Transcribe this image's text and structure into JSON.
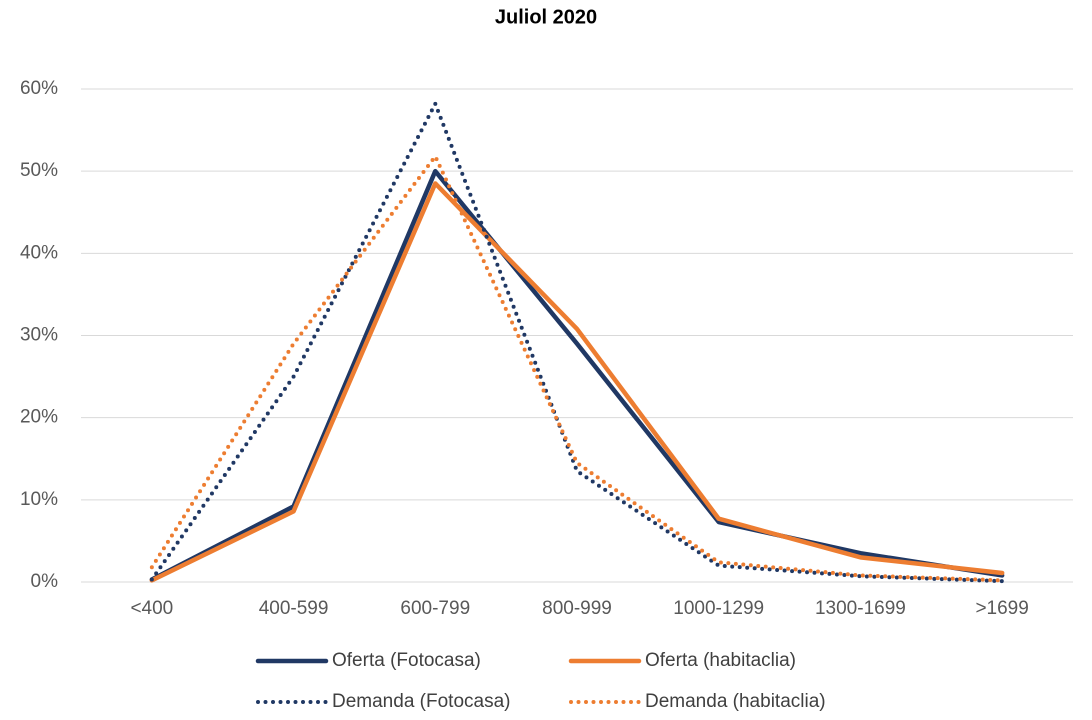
{
  "chart_data": {
    "type": "line",
    "title": "Juliol 2020",
    "categories": [
      "<400",
      "400-599",
      "600-799",
      "800-999",
      "1000-1299",
      "1300-1699",
      ">1699"
    ],
    "series": [
      {
        "name": "Oferta (Fotocasa)",
        "color": "#203864",
        "line_style": "solid",
        "values": [
          0.3,
          9.2,
          50,
          29,
          7.3,
          3.5,
          0.8
        ]
      },
      {
        "name": "Oferta (habitaclia)",
        "color": "#ed7d31",
        "line_style": "solid",
        "values": [
          0.2,
          8.6,
          48.5,
          30.8,
          7.7,
          3.0,
          1.1
        ]
      },
      {
        "name": "Demanda (Fotocasa)",
        "color": "#203864",
        "line_style": "dotted",
        "values": [
          0.3,
          25,
          58.2,
          13.5,
          2.0,
          0.7,
          0.1
        ]
      },
      {
        "name": "Demanda (habitaclia)",
        "color": "#ed7d31",
        "line_style": "dotted",
        "values": [
          1.8,
          29,
          51.8,
          14.5,
          2.4,
          0.8,
          0.2
        ]
      }
    ],
    "ylim": [
      0,
      60
    ],
    "yticks": [
      {
        "value": 0,
        "label": "0%"
      },
      {
        "value": 10,
        "label": "10%"
      },
      {
        "value": 20,
        "label": "20%"
      },
      {
        "value": 30,
        "label": "30%"
      },
      {
        "value": 40,
        "label": "40%"
      },
      {
        "value": 50,
        "label": "50%"
      },
      {
        "value": 60,
        "label": "60%"
      }
    ],
    "grid": true,
    "legend": "bottom"
  }
}
